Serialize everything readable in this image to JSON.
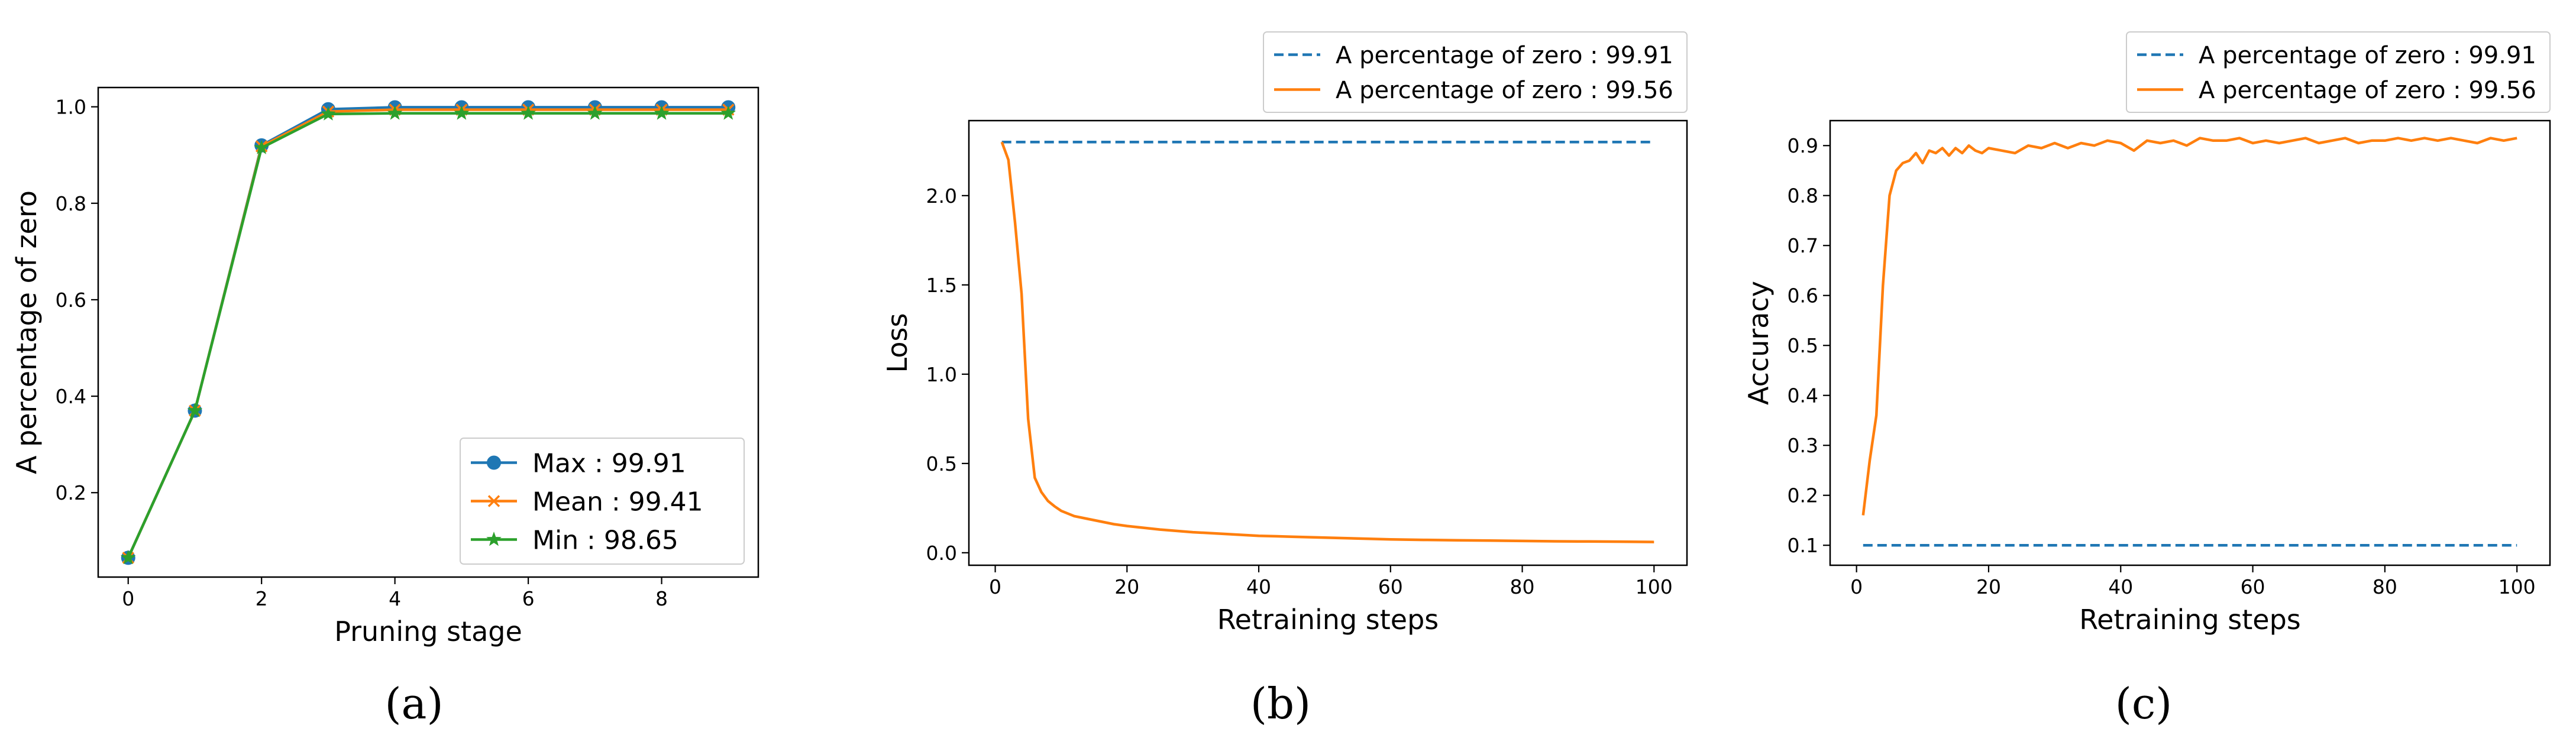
{
  "chart_data": [
    {
      "id": "a",
      "caption": "(a)",
      "type": "line",
      "xlabel": "Pruning stage",
      "ylabel": "A percentage of zero",
      "xlim": [
        -0.45,
        9.45
      ],
      "ylim": [
        0.025,
        1.04
      ],
      "xticks": [
        0,
        2,
        4,
        6,
        8
      ],
      "xtick_labels": [
        "0",
        "2",
        "4",
        "6",
        "8"
      ],
      "yticks": [
        0.2,
        0.4,
        0.6,
        0.8,
        1.0
      ],
      "ytick_labels": [
        "0.2",
        "0.4",
        "0.6",
        "0.8",
        "1.0"
      ],
      "grid": false,
      "legend_position": "lower-right",
      "x": [
        0,
        1,
        2,
        3,
        4,
        5,
        6,
        7,
        8,
        9
      ],
      "series": [
        {
          "name": "Max : 99.91",
          "color": "#1f77b4",
          "marker": "circle",
          "values": [
            0.065,
            0.37,
            0.92,
            0.995,
            0.999,
            0.999,
            0.999,
            0.999,
            0.999,
            0.999
          ]
        },
        {
          "name": "Mean : 99.41",
          "color": "#ff7f0e",
          "marker": "x",
          "values": [
            0.065,
            0.37,
            0.918,
            0.99,
            0.994,
            0.994,
            0.994,
            0.994,
            0.994,
            0.994
          ]
        },
        {
          "name": "Min : 98.65",
          "color": "#2ca02c",
          "marker": "star",
          "values": [
            0.065,
            0.37,
            0.915,
            0.985,
            0.9865,
            0.9865,
            0.9865,
            0.9865,
            0.9865,
            0.9865
          ]
        }
      ]
    },
    {
      "id": "b",
      "caption": "(b)",
      "type": "line",
      "xlabel": "Retraining steps",
      "ylabel": "Loss",
      "xlim": [
        -4,
        105
      ],
      "ylim": [
        -0.07,
        2.42
      ],
      "xticks": [
        0,
        20,
        40,
        60,
        80,
        100
      ],
      "xtick_labels": [
        "0",
        "20",
        "40",
        "60",
        "80",
        "100"
      ],
      "yticks": [
        0.0,
        0.5,
        1.0,
        1.5,
        2.0
      ],
      "ytick_labels": [
        "0.0",
        "0.5",
        "1.0",
        "1.5",
        "2.0"
      ],
      "grid": false,
      "legend_position": "above-right",
      "series": [
        {
          "name": "A percentage of zero : 99.91",
          "color": "#1f77b4",
          "style": "dashed",
          "x": [
            1,
            100
          ],
          "values": [
            2.3,
            2.3
          ]
        },
        {
          "name": "A percentage of zero : 99.56",
          "color": "#ff7f0e",
          "style": "solid",
          "x": [
            1,
            2,
            3,
            4,
            5,
            6,
            7,
            8,
            9,
            10,
            12,
            14,
            16,
            18,
            20,
            25,
            30,
            35,
            40,
            45,
            50,
            55,
            60,
            65,
            70,
            75,
            80,
            85,
            90,
            95,
            100
          ],
          "values": [
            2.3,
            2.2,
            1.85,
            1.45,
            0.75,
            0.42,
            0.34,
            0.29,
            0.26,
            0.235,
            0.205,
            0.19,
            0.175,
            0.16,
            0.15,
            0.13,
            0.115,
            0.105,
            0.095,
            0.09,
            0.085,
            0.08,
            0.075,
            0.072,
            0.07,
            0.068,
            0.066,
            0.064,
            0.063,
            0.062,
            0.06
          ]
        }
      ]
    },
    {
      "id": "c",
      "caption": "(c)",
      "type": "line",
      "xlabel": "Retraining steps",
      "ylabel": "Accuracy",
      "xlim": [
        -4,
        105
      ],
      "ylim": [
        0.06,
        0.95
      ],
      "xticks": [
        0,
        20,
        40,
        60,
        80,
        100
      ],
      "xtick_labels": [
        "0",
        "20",
        "40",
        "60",
        "80",
        "100"
      ],
      "yticks": [
        0.1,
        0.2,
        0.3,
        0.4,
        0.5,
        0.6,
        0.7,
        0.8,
        0.9
      ],
      "ytick_labels": [
        "0.1",
        "0.2",
        "0.3",
        "0.4",
        "0.5",
        "0.6",
        "0.7",
        "0.8",
        "0.9"
      ],
      "grid": false,
      "legend_position": "above-right",
      "series": [
        {
          "name": "A percentage of zero : 99.91",
          "color": "#1f77b4",
          "style": "dashed",
          "x": [
            1,
            100
          ],
          "values": [
            0.1,
            0.1
          ]
        },
        {
          "name": "A percentage of zero : 99.56",
          "color": "#ff7f0e",
          "style": "solid",
          "x": [
            1,
            2,
            3,
            4,
            5,
            6,
            7,
            8,
            9,
            10,
            11,
            12,
            13,
            14,
            15,
            16,
            17,
            18,
            19,
            20,
            22,
            24,
            26,
            28,
            30,
            32,
            34,
            36,
            38,
            40,
            42,
            44,
            46,
            48,
            50,
            52,
            54,
            56,
            58,
            60,
            62,
            64,
            66,
            68,
            70,
            72,
            74,
            76,
            78,
            80,
            82,
            84,
            86,
            88,
            90,
            92,
            94,
            96,
            98,
            100
          ],
          "values": [
            0.16,
            0.27,
            0.36,
            0.62,
            0.8,
            0.85,
            0.865,
            0.87,
            0.885,
            0.865,
            0.89,
            0.885,
            0.895,
            0.88,
            0.895,
            0.885,
            0.9,
            0.89,
            0.885,
            0.895,
            0.89,
            0.885,
            0.9,
            0.895,
            0.905,
            0.895,
            0.905,
            0.9,
            0.91,
            0.905,
            0.89,
            0.91,
            0.905,
            0.91,
            0.9,
            0.915,
            0.91,
            0.91,
            0.915,
            0.905,
            0.91,
            0.905,
            0.91,
            0.915,
            0.905,
            0.91,
            0.915,
            0.905,
            0.91,
            0.91,
            0.915,
            0.91,
            0.915,
            0.91,
            0.915,
            0.91,
            0.905,
            0.915,
            0.91,
            0.915
          ]
        }
      ]
    }
  ]
}
